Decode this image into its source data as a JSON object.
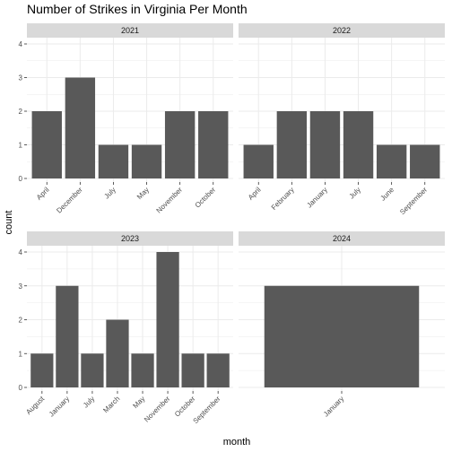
{
  "chart_data": {
    "type": "bar",
    "title": "Number of Strikes in Virginia Per Month",
    "xlabel": "month",
    "ylabel": "count",
    "ylim": [
      0,
      4
    ],
    "yticks": [
      0,
      1,
      2,
      3,
      4
    ],
    "grid": true,
    "bar_color": "#595959",
    "strip_color": "#d9d9d9",
    "grid_color": "#ebebeb",
    "facets": [
      {
        "label": "2021",
        "categories": [
          "April",
          "December",
          "July",
          "May",
          "November",
          "October"
        ],
        "values": [
          2,
          3,
          1,
          1,
          2,
          2
        ]
      },
      {
        "label": "2022",
        "categories": [
          "April",
          "February",
          "January",
          "July",
          "June",
          "September"
        ],
        "values": [
          1,
          2,
          2,
          2,
          1,
          1
        ]
      },
      {
        "label": "2023",
        "categories": [
          "August",
          "January",
          "July",
          "March",
          "May",
          "November",
          "October",
          "September"
        ],
        "values": [
          1,
          3,
          1,
          2,
          1,
          4,
          1,
          1
        ]
      },
      {
        "label": "2024",
        "categories": [
          "January"
        ],
        "values": [
          3
        ]
      }
    ]
  }
}
